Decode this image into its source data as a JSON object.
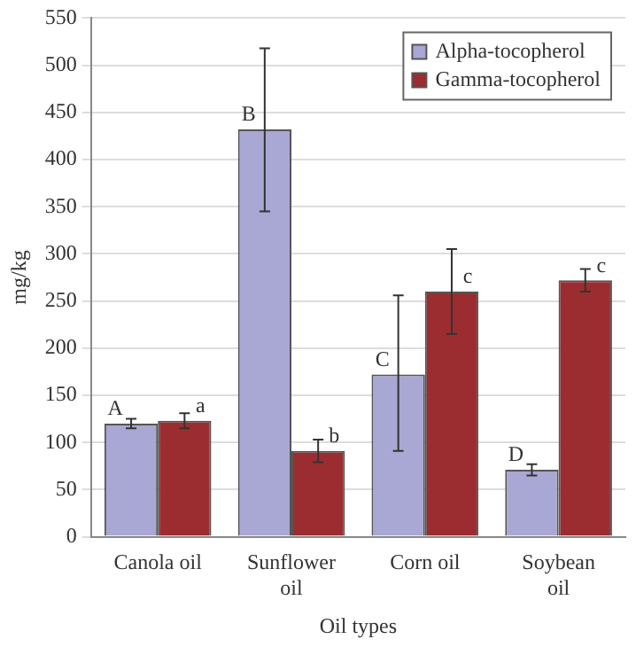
{
  "chart_data": {
    "type": "bar",
    "xlabel": "Oil types",
    "ylabel": "mg/kg",
    "categories": [
      "Canola oil",
      "Sunflower oil",
      "Corn oil",
      "Soybean oil"
    ],
    "series": [
      {
        "name": "Alpha-tocopherol",
        "color": "#a9a7d3",
        "values": [
          120,
          432,
          172,
          71
        ],
        "errors": [
          5,
          [
            345,
            518
          ],
          [
            91,
            256
          ],
          6
        ],
        "value_labels": [
          "A",
          "B",
          "C",
          "D"
        ]
      },
      {
        "name": "Gamma-tocopherol",
        "color": "#9b2d30",
        "values": [
          123,
          91,
          260,
          272
        ],
        "errors": [
          8,
          12,
          [
            215,
            305
          ],
          12
        ],
        "value_labels": [
          "a",
          "b",
          "c",
          "c"
        ]
      }
    ],
    "ylim": [
      0,
      550
    ],
    "yticks": [
      0,
      50,
      100,
      150,
      200,
      250,
      300,
      350,
      400,
      450,
      500,
      550
    ],
    "grid": "y",
    "legend": "top right"
  }
}
